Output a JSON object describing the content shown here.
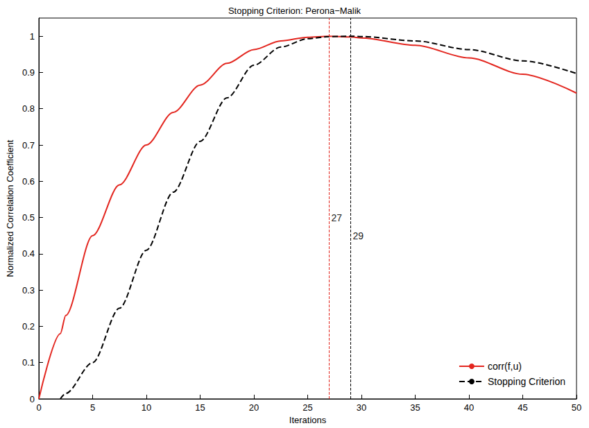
{
  "chart_data": {
    "type": "line",
    "title": "Stopping Criterion: Perona−Malik",
    "x_label": "Iterations",
    "y_label": "Normalized Correlation Coefficient",
    "x": [
      0,
      2,
      2.5,
      5,
      7.5,
      10,
      12.5,
      15,
      17.5,
      20,
      22.5,
      25,
      27,
      29,
      30,
      35,
      40,
      45,
      50
    ],
    "series": [
      {
        "name": "corr(f,u)",
        "color": "#e3261f",
        "line_style": "solid",
        "marker": "none",
        "values": [
          0,
          0.18,
          0.23,
          0.45,
          0.59,
          0.7,
          0.79,
          0.865,
          0.925,
          0.963,
          0.987,
          0.997,
          1.0,
          0.998,
          0.995,
          0.975,
          0.94,
          0.895,
          0.843
        ]
      },
      {
        "name": "Stopping Criterion",
        "color": "#000000",
        "line_style": "dashed",
        "marker": "none",
        "values": [
          null,
          0,
          0.015,
          0.1,
          0.25,
          0.41,
          0.57,
          0.71,
          0.83,
          0.92,
          0.97,
          0.993,
          0.999,
          1.0,
          0.999,
          0.987,
          0.963,
          0.932,
          0.897
        ]
      }
    ],
    "annotations": [
      {
        "x": 27,
        "y": 0.5,
        "label": "27",
        "color": "#e3261f"
      },
      {
        "x": 29,
        "y": 0.45,
        "label": "29",
        "color": "#000000"
      }
    ],
    "xlim": [
      0,
      50
    ],
    "xticks": [
      0,
      5,
      10,
      15,
      20,
      25,
      30,
      35,
      40,
      45,
      50
    ],
    "ylim": [
      0,
      1.05
    ],
    "yticks": [
      0,
      0.1,
      0.2,
      0.3,
      0.4,
      0.5,
      0.6,
      0.7,
      0.8,
      0.9,
      1
    ],
    "grid": false,
    "legend": "lower right"
  }
}
